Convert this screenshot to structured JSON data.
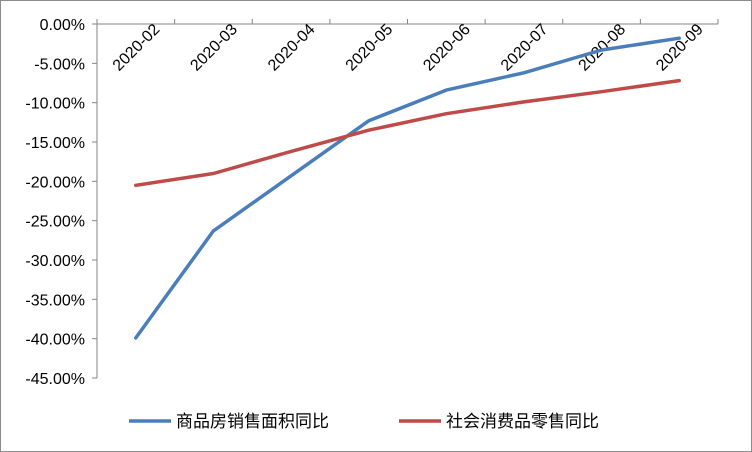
{
  "chart_data": {
    "type": "line",
    "title": "",
    "xlabel": "",
    "ylabel": "",
    "categories": [
      "2020-02",
      "2020-03",
      "2020-04",
      "2020-05",
      "2020-06",
      "2020-07",
      "2020-08",
      "2020-09"
    ],
    "y_ticks": [
      "0.00%",
      "-5.00%",
      "-10.00%",
      "-15.00%",
      "-20.00%",
      "-25.00%",
      "-30.00%",
      "-35.00%",
      "-40.00%",
      "-45.00%"
    ],
    "ylim": [
      -45,
      0
    ],
    "grid": false,
    "legend_position": "bottom",
    "series": [
      {
        "name": "商品房销售面积同比",
        "color": "#4a7ebb",
        "values": [
          -39.9,
          -26.3,
          -19.3,
          -12.3,
          -8.4,
          -6.2,
          -3.3,
          -1.8
        ]
      },
      {
        "name": "社会消费品零售同比",
        "color": "#be4b48",
        "values": [
          -20.5,
          -19.0,
          -16.2,
          -13.5,
          -11.4,
          -9.9,
          -8.6,
          -7.2
        ]
      }
    ]
  }
}
